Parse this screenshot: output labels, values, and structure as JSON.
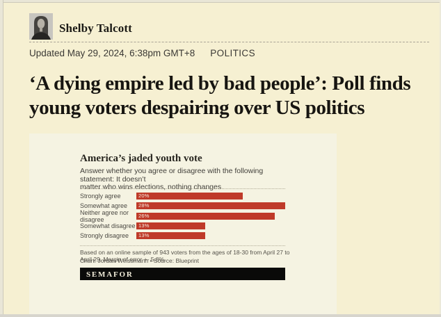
{
  "page": {
    "background_color": "#f6f0d2",
    "card_background_color": "#f5f3e2"
  },
  "byline": {
    "author": "Shelby Talcott",
    "avatar_icon": "author-portrait-photo"
  },
  "meta": {
    "updated": "Updated May 29, 2024, 6:38pm GMT+8",
    "category": "POLITICS"
  },
  "headline": {
    "line1": "‘A dying empire led by bad people’: Poll finds",
    "line2": "young voters despairing over US politics"
  },
  "chart_data": {
    "type": "bar",
    "orientation": "horizontal",
    "title": "America’s jaded youth vote",
    "subtitle_lines": [
      "Answer whether you agree or disagree with the following statement: It doesn’t",
      "matter who wins elections, nothing changes."
    ],
    "categories": [
      "Strongly agree",
      "Somewhat agree",
      "Neither agree nor disagree",
      "Somewhat disagree",
      "Strongly disagree"
    ],
    "values": [
      20,
      28,
      26,
      13,
      13
    ],
    "value_unit": "%",
    "xlim": [
      0,
      28
    ],
    "grid": false,
    "legend": false,
    "bar_color": "#bf3a29",
    "footnote": "Based on an online sample of 943 voters from the ages of 18-30 from April 27 to April 29. Margin of error +- 5.8%.",
    "credit": "Chart: Jordan Weissmann • Source: Blueprint",
    "logo": "SEMAFOR"
  }
}
